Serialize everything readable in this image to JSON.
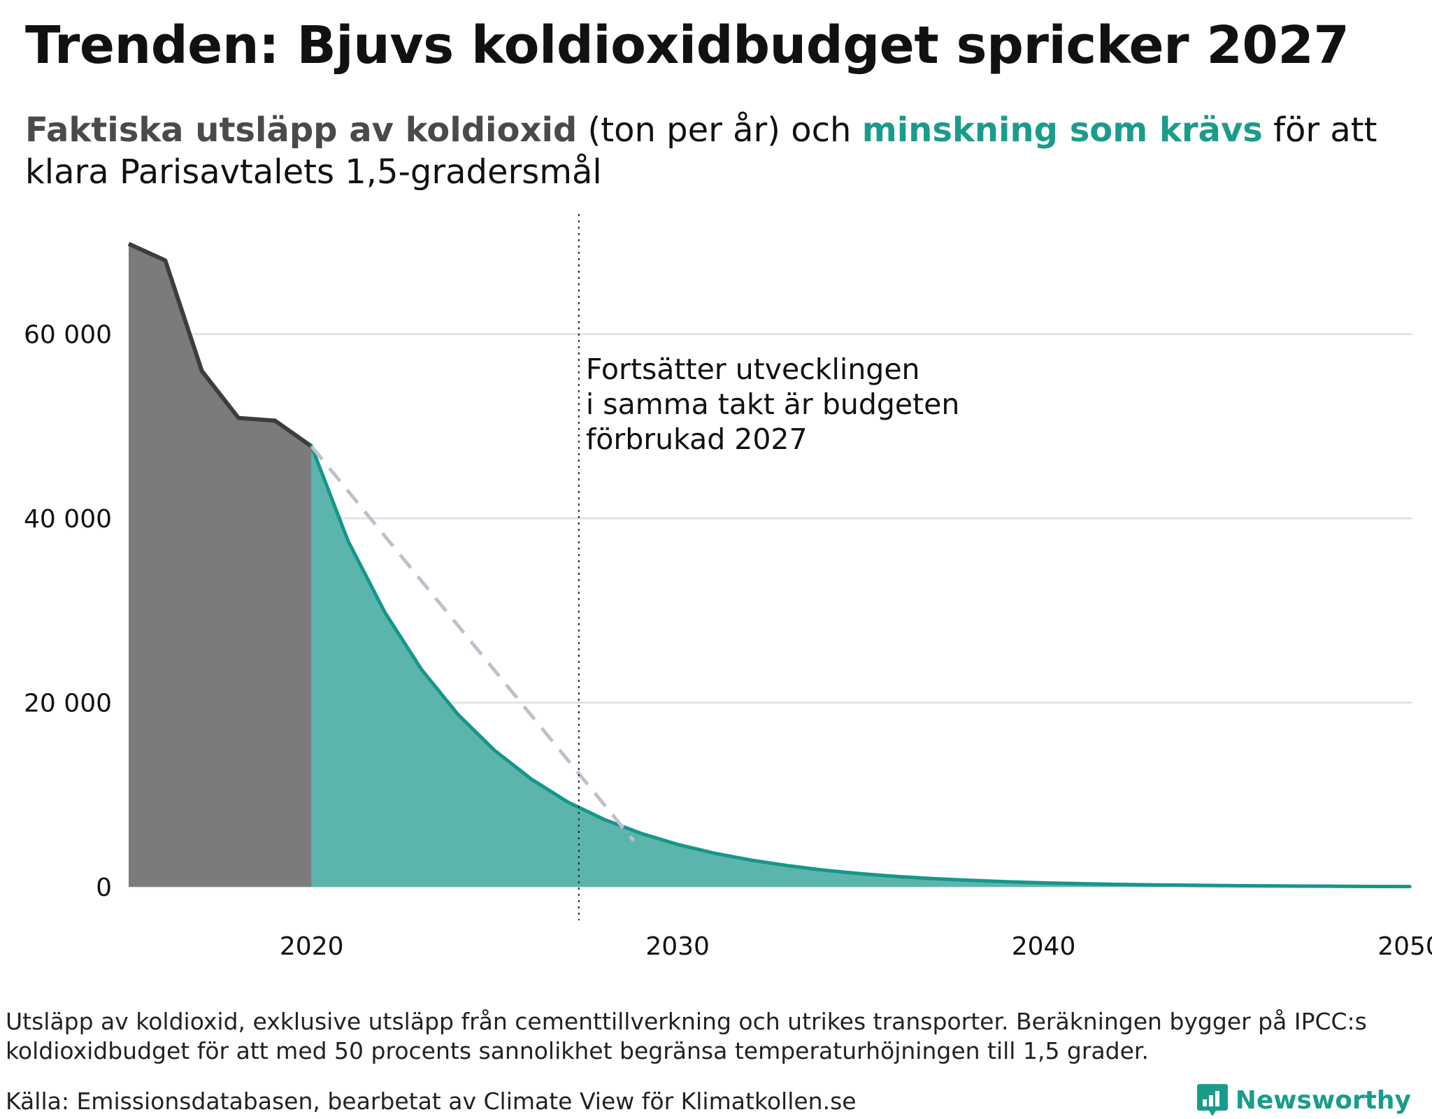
{
  "header": {
    "title": "Trenden: Bjuvs koldioxidbudget spricker 2027",
    "subtitle": {
      "part1": "Faktiska utsläpp av koldioxid",
      "part2": " (ton per år) och ",
      "part3": "minskning som krävs",
      "part4": " för att klara Parisavtalets 1,5-gradersmål"
    }
  },
  "chart_data": {
    "type": "area",
    "xlim": [
      2015,
      2050
    ],
    "ylim": [
      0,
      70000
    ],
    "y_ticks": [
      0,
      20000,
      40000,
      60000
    ],
    "y_tick_labels": [
      "0",
      "20 000",
      "40 000",
      "60 000"
    ],
    "x_ticks": [
      2020,
      2030,
      2040,
      2050
    ],
    "x_tick_labels": [
      "2020",
      "2030",
      "2040",
      "2050"
    ],
    "grid": true,
    "legend": "none",
    "series": [
      {
        "name": "Faktiska utsläpp av koldioxid",
        "color": "#7b7b7b",
        "line_color": "#3d3d3d",
        "x": [
          2015,
          2016,
          2017,
          2018,
          2019,
          2020
        ],
        "y": [
          69800,
          68000,
          56000,
          50900,
          50600,
          47800
        ]
      },
      {
        "name": "minskning som krävs",
        "color": "#5cb5ac",
        "line_color": "#16968a",
        "x": [
          2020,
          2021,
          2022,
          2023,
          2024,
          2025,
          2026,
          2027,
          2028,
          2029,
          2030,
          2031,
          2032,
          2033,
          2034,
          2035,
          2036,
          2037,
          2038,
          2039,
          2040,
          2041,
          2042,
          2043,
          2044,
          2045,
          2046,
          2047,
          2048,
          2049,
          2050
        ],
        "y": [
          47800,
          37500,
          29800,
          23600,
          18700,
          14800,
          11700,
          9200,
          7300,
          5800,
          4600,
          3650,
          2900,
          2300,
          1800,
          1420,
          1120,
          880,
          700,
          550,
          430,
          340,
          270,
          210,
          170,
          130,
          100,
          80,
          60,
          40,
          30
        ]
      },
      {
        "name": "trend",
        "color": "#c0c0cc",
        "x": [
          2020,
          2028.8
        ],
        "y": [
          47800,
          5000
        ]
      }
    ],
    "marker_x": 2027.3,
    "annotation": {
      "lines": [
        "Fortsätter utvecklingen",
        "i samma takt är budgeten",
        "förbrukad 2027"
      ]
    }
  },
  "footer": {
    "note": "Utsläpp av koldioxid, exklusive utsläpp från cementtillverkning och utrikes transporter. Beräkningen bygger på IPCC:s koldioxidbudget för att med 50 procents sannolikhet begränsa temperaturhöjningen till 1,5 grader.",
    "source": "Källa: Emissionsdatabasen, bearbetat av Climate View för Klimatkollen.se",
    "brand": "Newsworthy",
    "brand_color": "#1a9c8c",
    "brand_icon": "bar-chart-speech-bubble-icon"
  }
}
